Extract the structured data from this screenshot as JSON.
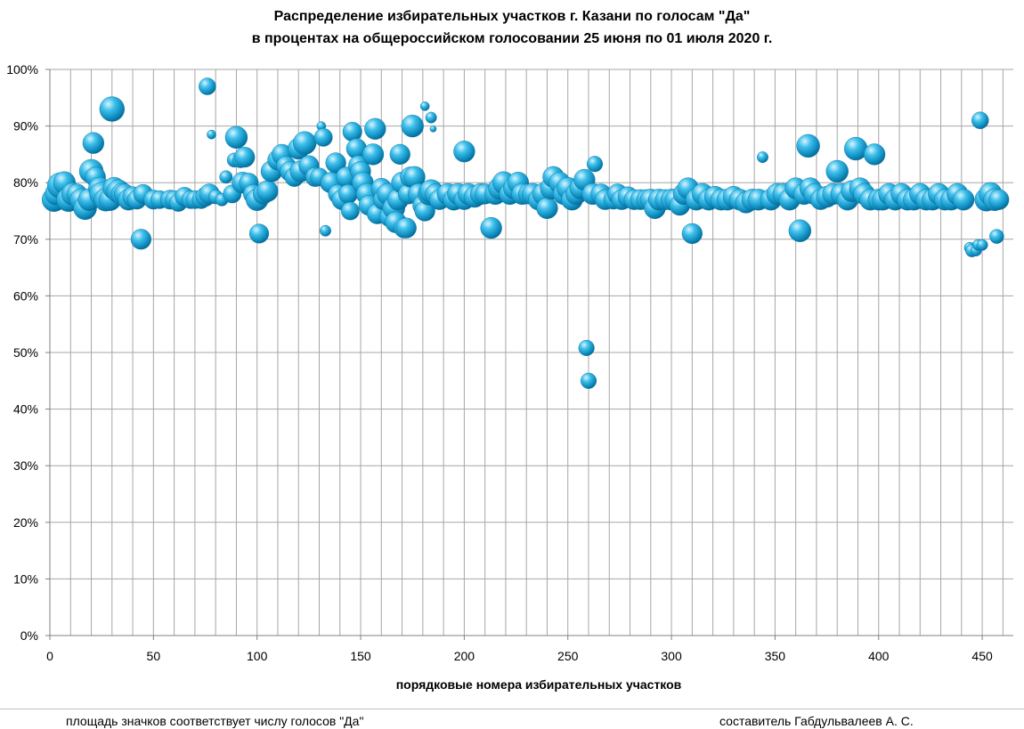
{
  "chart_data": {
    "type": "scatter",
    "title": "Распределение избирательных  участков  г. Казани по голосам \"Да\"",
    "subtitle": "в процентах на общероссийском голосовании 25 июня по 01 июля 2020 г.",
    "xlabel": "порядковые номера избирательных участков",
    "ylabel": "",
    "xlim": [
      0,
      465
    ],
    "ylim": [
      0,
      100
    ],
    "x_ticks": [
      0,
      50,
      100,
      150,
      200,
      250,
      300,
      350,
      400,
      450
    ],
    "y_ticks": [
      0,
      10,
      20,
      30,
      40,
      50,
      60,
      70,
      80,
      90,
      100
    ],
    "y_tick_labels": [
      "0%",
      "10%",
      "20%",
      "30%",
      "40%",
      "50%",
      "60%",
      "70%",
      "80%",
      "90%",
      "100%"
    ],
    "grid": true,
    "bubble_color": "#1aa7d8",
    "size_meaning": "relative number of \"Да\" votes (bubble area)",
    "points": [
      [
        2,
        77,
        14
      ],
      [
        3,
        78,
        12
      ],
      [
        5,
        79.5,
        16
      ],
      [
        7,
        80,
        12
      ],
      [
        9,
        77,
        14
      ],
      [
        11,
        78,
        12
      ],
      [
        13,
        78,
        10
      ],
      [
        15,
        77,
        12
      ],
      [
        17,
        75.5,
        13
      ],
      [
        19,
        77,
        12
      ],
      [
        20,
        82,
        14
      ],
      [
        21,
        87,
        11
      ],
      [
        22,
        81,
        10
      ],
      [
        24,
        79,
        12
      ],
      [
        25,
        78,
        14
      ],
      [
        27,
        77,
        13
      ],
      [
        29,
        77,
        12
      ],
      [
        30,
        93,
        15
      ],
      [
        31,
        79,
        12
      ],
      [
        33,
        78.5,
        13
      ],
      [
        35,
        78,
        12
      ],
      [
        36,
        78,
        10
      ],
      [
        38,
        77,
        11
      ],
      [
        40,
        77.5,
        10
      ],
      [
        42,
        77,
        9
      ],
      [
        44,
        70,
        10
      ],
      [
        45,
        78,
        9
      ],
      [
        50,
        77,
        9
      ],
      [
        53,
        77,
        8
      ],
      [
        58,
        77,
        9
      ],
      [
        60,
        77,
        8
      ],
      [
        62,
        76.5,
        8
      ],
      [
        65,
        77.5,
        9
      ],
      [
        68,
        77,
        8
      ],
      [
        70,
        77,
        8
      ],
      [
        73,
        77,
        8
      ],
      [
        75,
        77.5,
        9
      ],
      [
        76,
        97,
        7
      ],
      [
        77,
        78,
        10
      ],
      [
        78,
        88.5,
        2
      ],
      [
        80,
        77.5,
        5
      ],
      [
        83,
        77,
        4
      ],
      [
        85,
        81,
        4
      ],
      [
        88,
        78,
        8
      ],
      [
        89,
        84,
        5
      ],
      [
        90,
        88,
        12
      ],
      [
        92,
        84,
        6
      ],
      [
        93,
        80,
        11
      ],
      [
        94,
        84.5,
        10
      ],
      [
        96,
        80,
        9
      ],
      [
        98,
        78,
        9
      ],
      [
        100,
        77,
        12
      ],
      [
        101,
        71,
        9
      ],
      [
        103,
        78,
        10
      ],
      [
        105,
        78.5,
        11
      ],
      [
        107,
        82,
        11
      ],
      [
        110,
        84,
        10
      ],
      [
        112,
        85,
        10
      ],
      [
        114,
        83,
        9
      ],
      [
        116,
        82,
        10
      ],
      [
        118,
        81,
        9
      ],
      [
        120,
        86,
        11
      ],
      [
        121,
        82,
        11
      ],
      [
        123,
        87,
        13
      ],
      [
        125,
        83,
        10
      ],
      [
        128,
        81,
        9
      ],
      [
        130,
        81,
        8
      ],
      [
        131,
        90,
        2
      ],
      [
        132,
        88,
        8
      ],
      [
        133,
        71.5,
        3
      ],
      [
        135,
        80,
        9
      ],
      [
        136,
        80,
        11
      ],
      [
        138,
        83.5,
        10
      ],
      [
        139,
        78,
        9
      ],
      [
        141,
        77,
        10
      ],
      [
        143,
        81,
        10
      ],
      [
        144,
        78,
        9
      ],
      [
        145,
        75,
        8
      ],
      [
        146,
        89,
        9
      ],
      [
        148,
        86,
        10
      ],
      [
        149,
        83,
        10
      ],
      [
        150,
        82,
        10
      ],
      [
        151,
        80,
        11
      ],
      [
        153,
        78,
        11
      ],
      [
        154,
        76,
        10
      ],
      [
        156,
        85,
        11
      ],
      [
        157,
        89.5,
        11
      ],
      [
        158,
        74.5,
        10
      ],
      [
        160,
        79,
        10
      ],
      [
        161,
        77,
        10
      ],
      [
        163,
        78,
        11
      ],
      [
        164,
        74,
        10
      ],
      [
        166,
        75.5,
        12
      ],
      [
        167,
        73,
        11
      ],
      [
        168,
        77,
        11
      ],
      [
        169,
        85,
        10
      ],
      [
        170,
        80,
        11
      ],
      [
        171,
        72,
        10
      ],
      [
        172,
        72,
        10
      ],
      [
        173,
        78,
        10
      ],
      [
        174,
        81,
        10
      ],
      [
        175,
        90,
        12
      ],
      [
        176,
        81,
        11
      ],
      [
        178,
        78,
        11
      ],
      [
        180,
        76,
        10
      ],
      [
        181,
        75,
        10
      ],
      [
        181,
        93.5,
        2
      ],
      [
        183,
        78,
        12
      ],
      [
        184,
        78.5,
        13
      ],
      [
        184,
        91.5,
        3
      ],
      [
        185,
        89.5,
        1
      ],
      [
        186,
        78,
        10
      ],
      [
        188,
        77,
        10
      ],
      [
        192,
        78,
        11
      ],
      [
        195,
        77,
        11
      ],
      [
        197,
        78,
        11
      ],
      [
        200,
        77,
        10
      ],
      [
        200,
        85.5,
        11
      ],
      [
        202,
        78,
        11
      ],
      [
        205,
        77.5,
        11
      ],
      [
        208,
        78,
        11
      ],
      [
        210,
        78,
        10
      ],
      [
        213,
        72,
        11
      ],
      [
        215,
        78,
        11
      ],
      [
        217,
        79,
        12
      ],
      [
        219,
        80,
        12
      ],
      [
        222,
        78,
        11
      ],
      [
        224,
        79,
        11
      ],
      [
        226,
        80,
        11
      ],
      [
        228,
        78,
        11
      ],
      [
        231,
        78,
        10
      ],
      [
        233,
        78,
        11
      ],
      [
        236,
        77,
        11
      ],
      [
        238,
        78,
        11
      ],
      [
        240,
        75.5,
        11
      ],
      [
        242,
        79,
        12
      ],
      [
        243,
        81,
        11
      ],
      [
        246,
        80,
        11
      ],
      [
        248,
        78,
        11
      ],
      [
        250,
        79,
        12
      ],
      [
        252,
        77,
        11
      ],
      [
        254,
        78,
        11
      ],
      [
        256,
        79,
        11
      ],
      [
        258,
        80.5,
        11
      ],
      [
        259,
        50.8,
        6
      ],
      [
        260,
        45,
        6
      ],
      [
        262,
        78,
        11
      ],
      [
        263,
        83.3,
        6
      ],
      [
        266,
        78,
        10
      ],
      [
        268,
        77,
        10
      ],
      [
        272,
        77,
        9
      ],
      [
        274,
        78,
        10
      ],
      [
        276,
        77,
        10
      ],
      [
        279,
        77.5,
        10
      ],
      [
        282,
        77,
        10
      ],
      [
        285,
        77,
        10
      ],
      [
        288,
        77,
        10
      ],
      [
        290,
        77,
        11
      ],
      [
        292,
        75.5,
        11
      ],
      [
        294,
        77,
        11
      ],
      [
        297,
        77,
        10
      ],
      [
        300,
        77,
        11
      ],
      [
        302,
        77,
        11
      ],
      [
        304,
        76,
        10
      ],
      [
        306,
        78,
        11
      ],
      [
        308,
        79,
        11
      ],
      [
        310,
        71,
        10
      ],
      [
        312,
        77,
        11
      ],
      [
        315,
        78,
        11
      ],
      [
        318,
        77,
        11
      ],
      [
        321,
        77.5,
        11
      ],
      [
        324,
        77,
        11
      ],
      [
        327,
        77,
        11
      ],
      [
        330,
        77.5,
        11
      ],
      [
        333,
        77,
        11
      ],
      [
        336,
        76.5,
        11
      ],
      [
        339,
        77,
        11
      ],
      [
        342,
        77,
        11
      ],
      [
        344,
        84.5,
        3
      ],
      [
        348,
        77,
        11
      ],
      [
        351,
        78,
        11
      ],
      [
        354,
        78,
        11
      ],
      [
        357,
        77,
        11
      ],
      [
        360,
        79,
        11
      ],
      [
        362,
        71.5,
        12
      ],
      [
        364,
        78,
        11
      ],
      [
        366,
        86.5,
        13
      ],
      [
        367,
        79,
        11
      ],
      [
        369,
        78,
        11
      ],
      [
        372,
        77,
        10
      ],
      [
        375,
        77.5,
        11
      ],
      [
        378,
        78,
        11
      ],
      [
        380,
        82,
        12
      ],
      [
        382,
        78,
        11
      ],
      [
        385,
        77,
        11
      ],
      [
        387,
        78.5,
        11
      ],
      [
        389,
        86,
        13
      ],
      [
        391,
        79,
        11
      ],
      [
        393,
        78,
        11
      ],
      [
        396,
        77,
        11
      ],
      [
        398,
        85,
        11
      ],
      [
        400,
        77,
        11
      ],
      [
        402,
        77,
        11
      ],
      [
        405,
        78,
        11
      ],
      [
        408,
        77,
        11
      ],
      [
        411,
        78,
        11
      ],
      [
        414,
        77,
        11
      ],
      [
        417,
        77,
        11
      ],
      [
        420,
        78,
        11
      ],
      [
        423,
        77,
        11
      ],
      [
        426,
        77,
        11
      ],
      [
        429,
        78,
        11
      ],
      [
        432,
        77,
        11
      ],
      [
        435,
        77,
        11
      ],
      [
        438,
        78,
        11
      ],
      [
        441,
        77,
        11
      ],
      [
        444,
        68.5,
        3
      ],
      [
        445,
        68,
        4
      ],
      [
        447,
        68,
        3
      ],
      [
        448,
        69,
        3
      ],
      [
        449,
        91,
        7
      ],
      [
        450,
        69,
        3
      ],
      [
        452,
        77,
        13
      ],
      [
        454,
        78,
        13
      ],
      [
        456,
        77,
        12
      ],
      [
        457,
        70.5,
        5
      ],
      [
        458,
        77,
        10
      ]
    ]
  },
  "footer": {
    "note_left": "площадь значков соответствует числу голосов \"Да\"",
    "note_right": "составитель Габдульвалеев А. С."
  }
}
